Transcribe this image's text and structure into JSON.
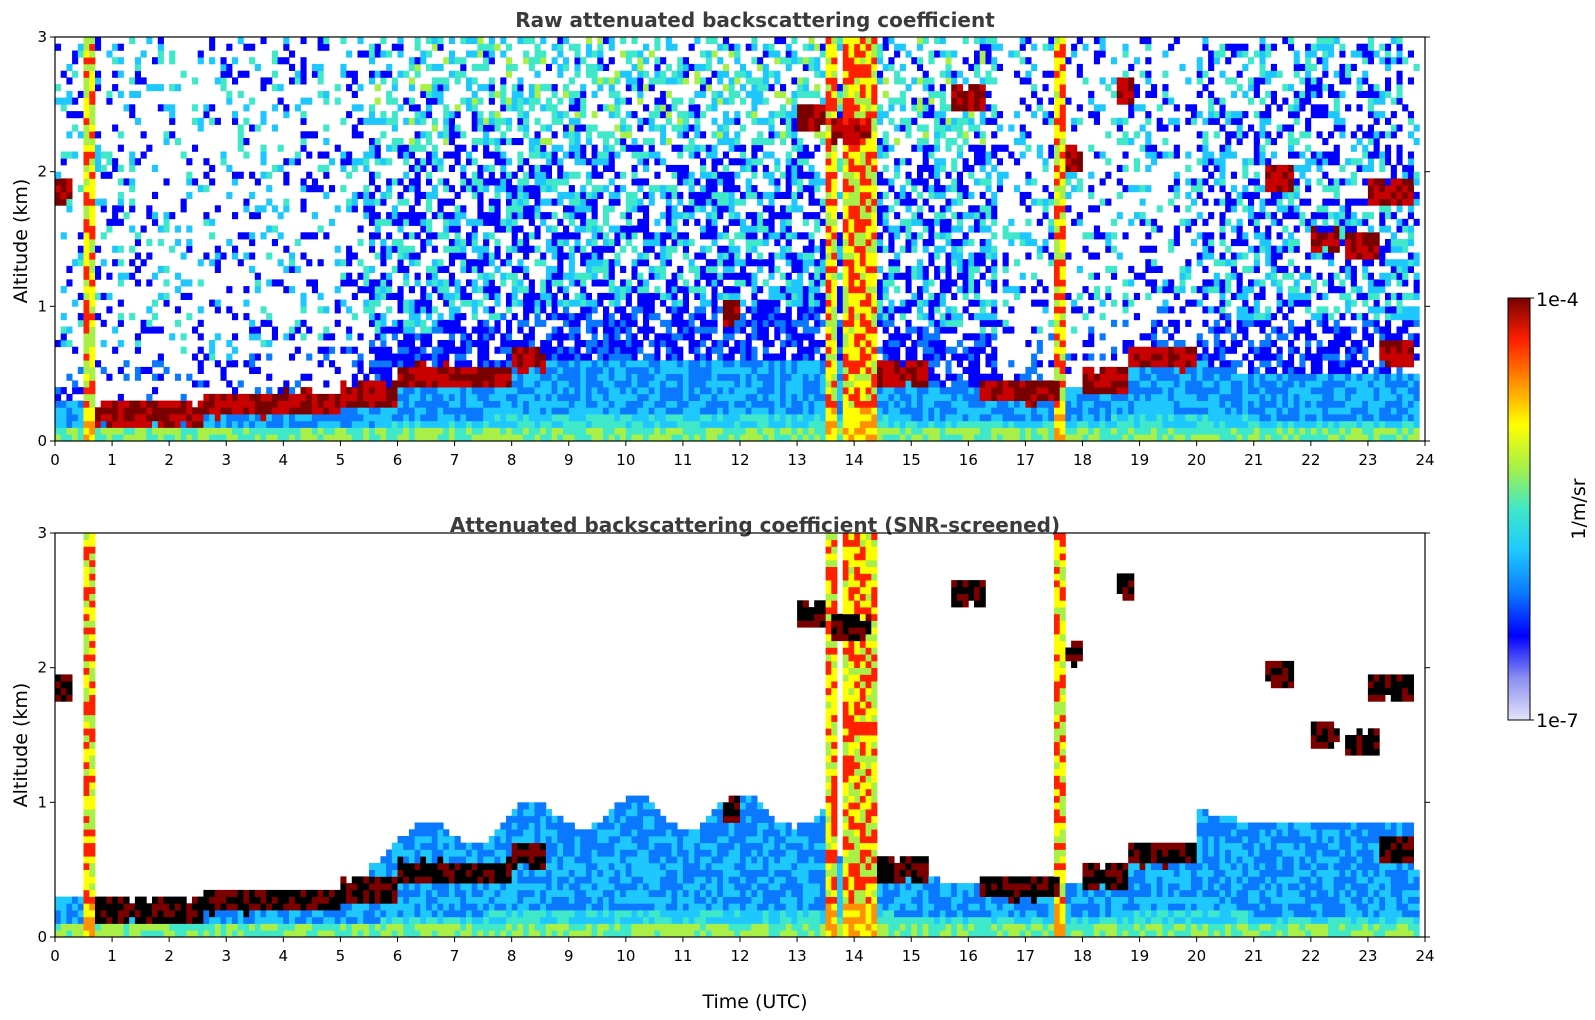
{
  "chart_data": [
    {
      "type": "heatmap",
      "title": "Raw attenuated backscattering coefficient",
      "xlabel": "",
      "ylabel": "Altitude (km)",
      "xlim": [
        0,
        24
      ],
      "ylim": [
        0,
        3
      ],
      "xticks": [
        "0",
        "1",
        "2",
        "3",
        "4",
        "5",
        "6",
        "7",
        "8",
        "9",
        "10",
        "11",
        "12",
        "13",
        "14",
        "15",
        "16",
        "17",
        "18",
        "19",
        "20",
        "21",
        "22",
        "23",
        "24"
      ],
      "yticks": [
        "0",
        "1",
        "2",
        "3"
      ],
      "screened": false
    },
    {
      "type": "heatmap",
      "title": "Attenuated backscattering coefficient (SNR-screened)",
      "xlabel": "Time (UTC)",
      "ylabel": "Altitude (km)",
      "xlim": [
        0,
        24
      ],
      "ylim": [
        0,
        3
      ],
      "xticks": [
        "0",
        "1",
        "2",
        "3",
        "4",
        "5",
        "6",
        "7",
        "8",
        "9",
        "10",
        "11",
        "12",
        "13",
        "14",
        "15",
        "16",
        "17",
        "18",
        "19",
        "20",
        "21",
        "22",
        "23",
        "24"
      ],
      "yticks": [
        "0",
        "1",
        "2",
        "3"
      ],
      "screened": true
    }
  ],
  "layers": {
    "boundary_layer_top_km": [
      [
        0.6,
        0.32
      ],
      [
        0.75,
        0.22
      ],
      [
        1.5,
        0.2
      ],
      [
        2.5,
        0.18
      ],
      [
        3,
        0.22
      ],
      [
        4,
        0.25
      ],
      [
        5,
        0.3
      ],
      [
        6,
        0.38
      ],
      [
        7,
        0.45
      ],
      [
        8,
        0.55
      ],
      [
        9,
        0.6
      ],
      [
        10,
        0.6
      ],
      [
        11,
        0.6
      ],
      [
        12,
        0.62
      ],
      [
        13,
        0.62
      ],
      [
        13.5,
        0.6
      ],
      [
        14.4,
        0.55
      ],
      [
        15,
        0.45
      ],
      [
        16,
        0.4
      ],
      [
        17,
        0.38
      ],
      [
        18,
        0.4
      ],
      [
        19,
        0.6
      ],
      [
        20,
        0.6
      ],
      [
        21,
        0.5
      ],
      [
        23.8,
        0.5
      ]
    ],
    "cloud_segments": [
      {
        "t0": 0.7,
        "t1": 2.6,
        "h": 0.2
      },
      {
        "t0": 2.6,
        "t1": 3.8,
        "h": 0.27
      },
      {
        "t0": 3.8,
        "t1": 5.0,
        "h": 0.28
      },
      {
        "t0": 5.0,
        "t1": 6.0,
        "h": 0.34
      },
      {
        "t0": 6.0,
        "t1": 8.0,
        "h": 0.48
      },
      {
        "t0": 8.0,
        "t1": 8.6,
        "h": 0.6
      },
      {
        "t0": 11.7,
        "t1": 12.0,
        "h": 0.95
      },
      {
        "t0": 13.0,
        "t1": 13.5,
        "h": 2.4
      },
      {
        "t0": 13.6,
        "t1": 14.3,
        "h": 2.3
      },
      {
        "t0": 14.4,
        "t1": 15.3,
        "h": 0.5
      },
      {
        "t0": 15.7,
        "t1": 16.3,
        "h": 2.55
      },
      {
        "t0": 16.2,
        "t1": 17.6,
        "h": 0.37
      },
      {
        "t0": 17.7,
        "t1": 18.0,
        "h": 2.1
      },
      {
        "t0": 18.0,
        "t1": 18.8,
        "h": 0.45
      },
      {
        "t0": 18.6,
        "t1": 18.9,
        "h": 2.6
      },
      {
        "t0": 18.8,
        "t1": 20.0,
        "h": 0.62
      },
      {
        "t0": 21.2,
        "t1": 21.7,
        "h": 1.95
      },
      {
        "t0": 22.0,
        "t1": 22.5,
        "h": 1.5
      },
      {
        "t0": 22.6,
        "t1": 23.2,
        "h": 1.45
      },
      {
        "t0": 23.0,
        "t1": 23.8,
        "h": 1.85
      },
      {
        "t0": 23.2,
        "t1": 23.8,
        "h": 0.65
      },
      {
        "t0": 0.0,
        "t1": 0.25,
        "h": 1.85
      }
    ],
    "precip_columns": [
      {
        "t0": 0.5,
        "t1": 0.68
      },
      {
        "t0": 13.5,
        "t1": 13.75
      },
      {
        "t0": 13.85,
        "t1": 14.05
      },
      {
        "t0": 14.15,
        "t1": 14.4
      },
      {
        "t0": 17.55,
        "t1": 17.7
      }
    ]
  },
  "colorbar": {
    "label": "1/m/sr",
    "max_label": "1e-4",
    "min_label": "1e-7",
    "colors": [
      "#e4e4f8",
      "#8a8ef2",
      "#0000ff",
      "#0a78ff",
      "#1ec8ff",
      "#3fe8c8",
      "#a8f048",
      "#ffff00",
      "#ff9000",
      "#ff2000",
      "#7a0000"
    ]
  }
}
